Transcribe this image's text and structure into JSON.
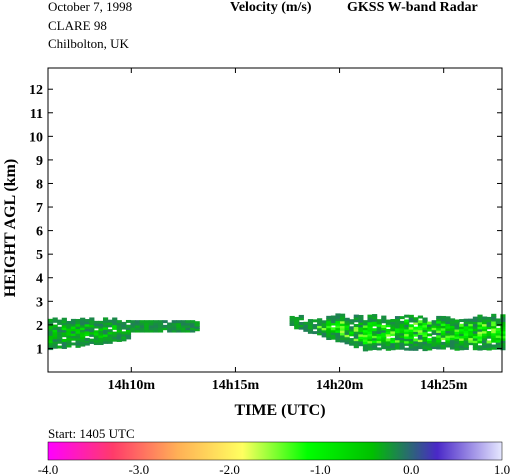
{
  "header": {
    "date": "October   7, 1998",
    "campaign": "CLARE 98",
    "location": "Chilbolton, UK",
    "title": "Velocity (m/s)",
    "instrument": "GKSS  W-band Radar",
    "start": "Start: 1405 UTC"
  },
  "chart_data": {
    "type": "heatmap",
    "title": "Velocity (m/s)",
    "xlabel": "TIME (UTC)",
    "ylabel": "HEIGHT AGL (km)",
    "x_ticks": [
      "14h10m",
      "14h15m",
      "14h20m",
      "14h25m"
    ],
    "y_ticks": [
      "1",
      "2",
      "3",
      "4",
      "5",
      "6",
      "7",
      "8",
      "9",
      "10",
      "11",
      "12"
    ],
    "xlim_min": [
      6.0,
      27.8
    ],
    "ylim_km": [
      0,
      12.9
    ],
    "colorbar": {
      "label": "Velocity (m/s)",
      "range": [
        -4.0,
        1.0
      ],
      "ticks": [
        "-4.0",
        "-3.0",
        "-2.0",
        "-1.0",
        "0.0",
        "1.0"
      ],
      "stops": [
        "#ff00ff",
        "#ff3b6a",
        "#ffb056",
        "#ffff60",
        "#00ff00",
        "#00c000",
        "#4a28c8",
        "#e6e8ff"
      ]
    },
    "echo_regions": [
      {
        "t_start_min": 6.0,
        "t_end_min": 13.2,
        "base_km": 0.9,
        "top_km": 2.3,
        "velocity_ms": [
          -0.8,
          -0.1
        ]
      },
      {
        "t_start_min": 17.6,
        "t_end_min": 27.8,
        "base_km": 0.9,
        "top_km": 2.4,
        "velocity_ms": [
          -1.6,
          -0.1
        ]
      }
    ]
  }
}
